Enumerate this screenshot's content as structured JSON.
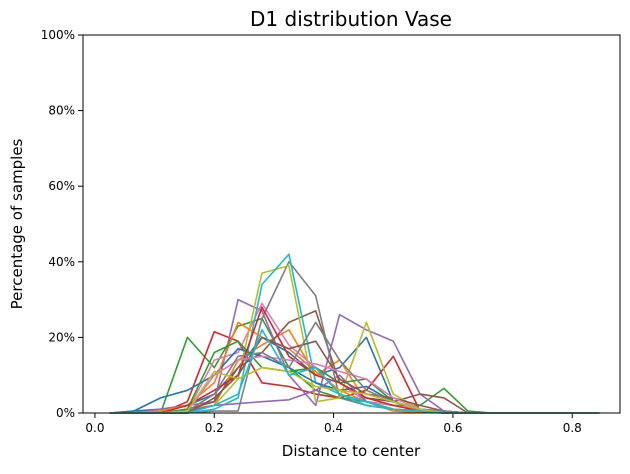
{
  "chart_data": {
    "type": "line",
    "title": "D1 distribution Vase",
    "xlabel": "Distance to center",
    "ylabel": "Percentage of samples",
    "xlim": [
      -0.02,
      0.88
    ],
    "ylim": [
      0,
      100
    ],
    "xticks": [
      0.0,
      0.2,
      0.4,
      0.6,
      0.8
    ],
    "xtick_labels": [
      "0.0",
      "0.2",
      "0.4",
      "0.6",
      "0.8"
    ],
    "yticks": [
      0,
      20,
      40,
      60,
      80,
      100
    ],
    "ytick_labels": [
      "0%",
      "20%",
      "40%",
      "60%",
      "80%",
      "100%"
    ],
    "grid": false,
    "x": [
      0.025,
      0.065,
      0.11,
      0.155,
      0.2,
      0.24,
      0.28,
      0.325,
      0.37,
      0.41,
      0.455,
      0.5,
      0.545,
      0.585,
      0.625,
      0.665,
      0.71,
      0.755,
      0.8,
      0.845
    ],
    "series": [
      {
        "color": "#1f77b4",
        "values": [
          0,
          0.5,
          1,
          2,
          5,
          12,
          20,
          16,
          10,
          12,
          20,
          3,
          1,
          0.5,
          0,
          0,
          0,
          0,
          0,
          0
        ]
      },
      {
        "color": "#ff7f0e",
        "values": [
          0,
          0,
          0,
          1,
          2,
          14,
          18,
          22,
          10,
          14,
          3,
          0.5,
          0.2,
          0,
          0,
          0,
          0,
          0,
          0,
          0
        ]
      },
      {
        "color": "#2ca02c",
        "values": [
          0,
          0,
          0,
          20,
          12,
          23,
          25,
          12,
          6,
          4,
          3,
          2,
          2,
          6.5,
          0.5,
          0,
          0,
          0,
          0,
          0
        ]
      },
      {
        "color": "#d62728",
        "values": [
          0,
          0,
          0,
          3,
          21.5,
          19,
          8,
          7,
          5,
          4,
          6,
          15,
          0.5,
          0,
          0,
          0,
          0,
          0,
          0,
          0
        ]
      },
      {
        "color": "#9467bd",
        "values": [
          0,
          0,
          1,
          2,
          3,
          30,
          27,
          10,
          2,
          26,
          22,
          19,
          5,
          0.5,
          0,
          0,
          0,
          0,
          0,
          0
        ]
      },
      {
        "color": "#8c564b",
        "values": [
          0,
          0,
          0,
          1,
          3,
          12,
          16,
          24,
          27,
          8,
          4,
          3,
          5,
          4,
          0,
          0,
          0,
          0,
          0,
          0
        ]
      },
      {
        "color": "#e377c2",
        "values": [
          0,
          0,
          0,
          0.5,
          14,
          16,
          29,
          18,
          12,
          8,
          3,
          2,
          1,
          0,
          0,
          0,
          0,
          0,
          0,
          0
        ]
      },
      {
        "color": "#7f7f7f",
        "values": [
          0,
          0,
          0,
          0,
          0.5,
          0.5,
          25,
          40,
          31,
          4,
          2,
          1,
          0.5,
          0,
          0,
          0,
          0,
          0,
          0,
          0
        ]
      },
      {
        "color": "#bcbd22",
        "values": [
          0,
          0,
          0,
          0,
          2,
          9,
          37,
          39,
          3,
          4,
          24,
          5,
          1,
          0,
          0,
          0,
          0,
          0,
          0,
          0
        ]
      },
      {
        "color": "#17becf",
        "values": [
          0,
          0,
          0,
          0,
          1,
          4,
          34,
          42,
          8,
          5,
          2,
          1,
          0.5,
          0,
          0,
          0,
          0,
          0,
          0,
          0
        ]
      },
      {
        "color": "#1f77b4",
        "values": [
          0,
          0.5,
          4,
          6,
          10,
          17,
          15,
          12,
          8,
          6,
          7,
          3,
          1,
          0,
          0,
          0,
          0,
          0,
          0,
          0
        ]
      },
      {
        "color": "#ff7f0e",
        "values": [
          0,
          0,
          0.5,
          2,
          8,
          24,
          20,
          17,
          11,
          6,
          3,
          1,
          0.5,
          0,
          0,
          0,
          0,
          0,
          0,
          0
        ]
      },
      {
        "color": "#2ca02c",
        "values": [
          0,
          0,
          0,
          1,
          16,
          19,
          12,
          11,
          12,
          8,
          9,
          3,
          1,
          0,
          0,
          0,
          0,
          0,
          0,
          0
        ]
      },
      {
        "color": "#d62728",
        "values": [
          0,
          0,
          0,
          2,
          6,
          10,
          28,
          15,
          10,
          8,
          4,
          2,
          0.5,
          0,
          0,
          0,
          0,
          0,
          0,
          0
        ]
      },
      {
        "color": "#9467bd",
        "values": [
          0,
          0,
          0,
          0.5,
          2,
          2.5,
          3,
          3.5,
          6,
          10,
          3,
          1,
          0.5,
          0,
          0,
          0,
          0,
          0,
          0,
          0
        ]
      },
      {
        "color": "#8c564b",
        "values": [
          0,
          0,
          0,
          0,
          4,
          10,
          20,
          17,
          19,
          9,
          5,
          4,
          2,
          0.5,
          0,
          0,
          0,
          0,
          0,
          0
        ]
      },
      {
        "color": "#e377c2",
        "values": [
          0,
          0,
          0,
          0.5,
          10,
          14,
          15,
          14,
          13,
          11,
          9,
          4,
          1,
          0,
          0,
          0,
          0,
          0,
          0,
          0
        ]
      },
      {
        "color": "#7f7f7f",
        "values": [
          0,
          0,
          0,
          0.5,
          5,
          15,
          16,
          12,
          24,
          14,
          6,
          3,
          1,
          0.5,
          0,
          0,
          0,
          0,
          0,
          0
        ]
      },
      {
        "color": "#bcbd22",
        "values": [
          0,
          0,
          0,
          0.5,
          11,
          9,
          12,
          11,
          7,
          6,
          5,
          3,
          1,
          0,
          0,
          0,
          0,
          0,
          0,
          0
        ]
      },
      {
        "color": "#17becf",
        "values": [
          0,
          0,
          0,
          0,
          2,
          5,
          22,
          10,
          12,
          5,
          3,
          1,
          0.5,
          0,
          0,
          0,
          0,
          0,
          0,
          0
        ]
      }
    ]
  }
}
